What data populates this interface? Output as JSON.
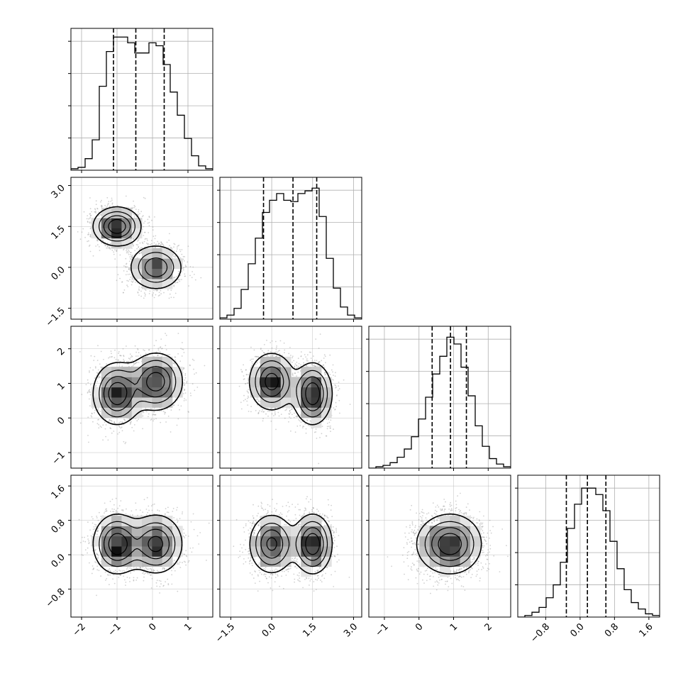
{
  "chart_data": {
    "type": "corner",
    "n_params": 4,
    "grid": true,
    "colors": {
      "line": "#000000",
      "grid": "#b0b0b0",
      "scatter": "#999999"
    },
    "params": [
      {
        "range": [
          -2.3,
          1.7
        ],
        "ticks": [
          -2,
          -1,
          0,
          1
        ],
        "tick_labels": [
          "−2",
          "−1",
          "0",
          "1"
        ],
        "quantiles": [
          -1.1,
          -0.47,
          0.33
        ],
        "hist_bin_edges": [
          -2.3,
          -2.1,
          -1.9,
          -1.7,
          -1.5,
          -1.3,
          -1.1,
          -0.9,
          -0.7,
          -0.5,
          -0.3,
          -0.1,
          0.1,
          0.3,
          0.5,
          0.7,
          0.9,
          1.1,
          1.3,
          1.5,
          1.7
        ],
        "hist_counts": [
          1,
          2,
          8,
          21,
          58,
          82,
          92,
          92,
          88,
          81,
          81,
          88,
          86,
          73,
          54,
          38,
          22,
          10,
          3,
          1
        ],
        "ylim": [
          0,
          98
        ]
      },
      {
        "range": [
          -1.9,
          3.3
        ],
        "ticks": [
          -1.5,
          0.0,
          1.5,
          3.0
        ],
        "tick_labels": [
          "−1.5",
          "0.0",
          "1.5",
          "3.0"
        ],
        "quantiles": [
          -0.3,
          0.78,
          1.65
        ],
        "hist_bin_edges": [
          -1.9,
          -1.64,
          -1.38,
          -1.12,
          -0.86,
          -0.6,
          -0.34,
          -0.08,
          0.18,
          0.44,
          0.7,
          0.96,
          1.22,
          1.48,
          1.74,
          2.0,
          2.26,
          2.52,
          2.78,
          3.04,
          3.3
        ],
        "hist_counts": [
          1,
          3,
          8,
          22,
          41,
          60,
          79,
          88,
          93,
          88,
          87,
          93,
          95,
          97,
          76,
          45,
          23,
          9,
          3,
          1
        ],
        "ylim": [
          0,
          105
        ]
      },
      {
        "range": [
          -1.45,
          2.65
        ],
        "ticks": [
          -1,
          0,
          1,
          2
        ],
        "tick_labels": [
          "−1",
          "0",
          "1",
          "2"
        ],
        "quantiles": [
          0.38,
          0.91,
          1.37
        ],
        "hist_bin_edges": [
          -1.45,
          -1.245,
          -1.04,
          -0.835,
          -0.63,
          -0.425,
          -0.22,
          -0.015,
          0.19,
          0.395,
          0.6,
          0.805,
          1.01,
          1.215,
          1.42,
          1.625,
          1.83,
          2.035,
          2.24,
          2.445,
          2.65
        ],
        "hist_counts": [
          0,
          1,
          2,
          4,
          8,
          14,
          23,
          36,
          52,
          69,
          82,
          96,
          91,
          74,
          53,
          31,
          16,
          7,
          3,
          1
        ],
        "ylim": [
          0,
          104
        ]
      },
      {
        "range": [
          -1.45,
          1.85
        ],
        "ticks": [
          -0.8,
          0.0,
          0.8,
          1.6
        ],
        "tick_labels": [
          "−0.8",
          "0.0",
          "0.8",
          "1.6"
        ],
        "quantiles": [
          -0.32,
          0.17,
          0.6
        ],
        "hist_bin_edges": [
          -1.45,
          -1.285,
          -1.12,
          -0.955,
          -0.79,
          -0.625,
          -0.46,
          -0.295,
          -0.13,
          0.035,
          0.2,
          0.365,
          0.53,
          0.695,
          0.86,
          1.025,
          1.19,
          1.355,
          1.52,
          1.685,
          1.85
        ],
        "hist_counts": [
          0,
          1,
          3,
          6,
          12,
          20,
          34,
          55,
          70,
          80,
          80,
          76,
          66,
          47,
          30,
          17,
          9,
          5,
          2,
          1
        ],
        "ylim": [
          0,
          88
        ]
      }
    ],
    "components": [
      {
        "weight": 0.5,
        "mean": [
          -1.0,
          1.5,
          0.7,
          0.25
        ],
        "sd": [
          0.34,
          0.36,
          0.45,
          0.35
        ]
      },
      {
        "weight": 0.5,
        "mean": [
          0.1,
          0.0,
          1.05,
          0.25
        ],
        "sd": [
          0.38,
          0.42,
          0.42,
          0.35
        ]
      }
    ]
  }
}
